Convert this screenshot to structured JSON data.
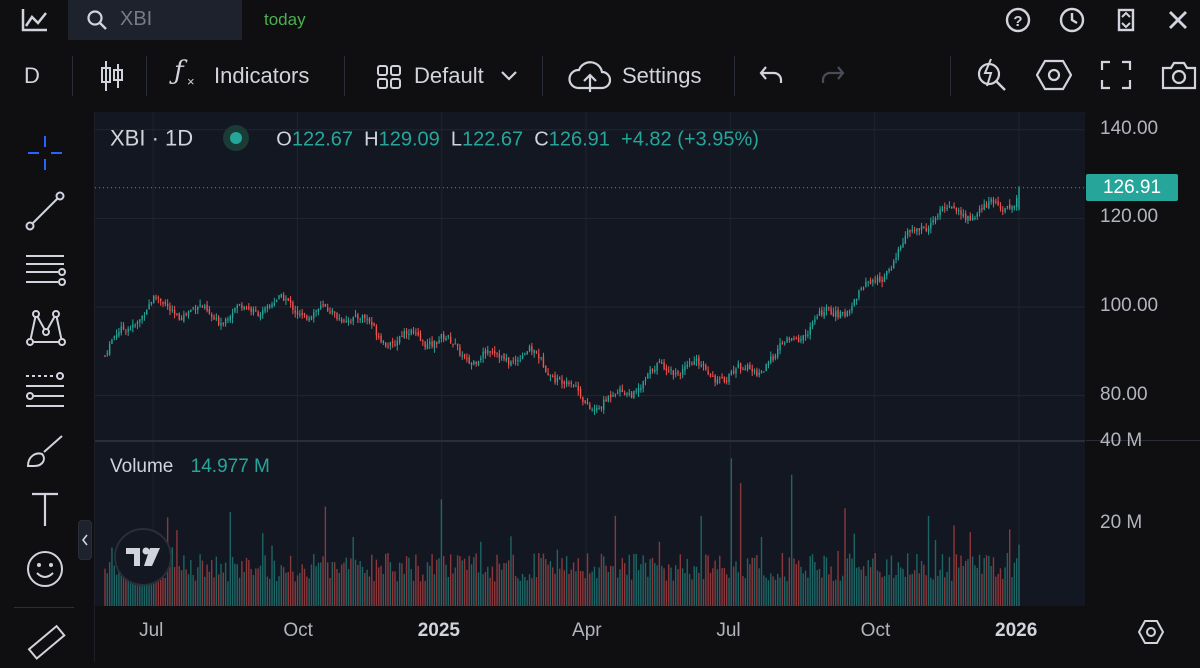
{
  "header": {
    "search_placeholder": "XBI",
    "today_label": "today"
  },
  "toolbar": {
    "interval": "D",
    "indicators_label": "Indicators",
    "layout_label": "Default",
    "settings_label": "Settings"
  },
  "legend": {
    "symbol": "XBI · 1D",
    "o_key": "O",
    "o_val": "122.67",
    "h_key": "H",
    "h_val": "129.09",
    "l_key": "L",
    "l_val": "122.67",
    "c_key": "C",
    "c_val": "126.91",
    "change": "+4.82 (+3.95%)"
  },
  "volume": {
    "label": "Volume",
    "value": "14.977 M"
  },
  "last_price_badge": "126.91",
  "colors": {
    "up": "#26a69a",
    "down": "#ef5350",
    "accent": "#2962ff",
    "today": "#4caf50"
  },
  "chart_data": {
    "type": "candlestick",
    "symbol": "XBI",
    "interval": "1D",
    "price_axis_ticks": [
      "140.00",
      "120.00",
      "100.00",
      "80.00"
    ],
    "price_ticks_values": [
      140,
      120,
      100,
      80
    ],
    "price_range": [
      70,
      144
    ],
    "volume_axis_ticks": [
      "40 M",
      "20 M"
    ],
    "volume_ticks_values": [
      40,
      20
    ],
    "volume_range": [
      0,
      40
    ],
    "time_labels": [
      "Jul",
      "Oct",
      "2025",
      "Apr",
      "Jul",
      "Oct",
      "2026"
    ],
    "time_label_bold": [
      false,
      false,
      true,
      false,
      false,
      false,
      true
    ],
    "last_close": 126.91,
    "close_series": [
      {
        "month": "2024-06",
        "close": 89
      },
      {
        "month": "2024-07",
        "close": 99
      },
      {
        "month": "2024-08",
        "close": 101
      },
      {
        "month": "2024-09",
        "close": 98
      },
      {
        "month": "2024-10",
        "close": 99
      },
      {
        "month": "2024-11",
        "close": 101
      },
      {
        "month": "2024-12",
        "close": 90
      },
      {
        "month": "2025-01",
        "close": 93
      },
      {
        "month": "2025-02",
        "close": 90
      },
      {
        "month": "2025-03",
        "close": 86
      },
      {
        "month": "2025-04",
        "close": 80
      },
      {
        "month": "2025-05",
        "close": 82
      },
      {
        "month": "2025-06",
        "close": 85
      },
      {
        "month": "2025-07",
        "close": 87
      },
      {
        "month": "2025-08",
        "close": 88
      },
      {
        "month": "2025-09",
        "close": 97
      },
      {
        "month": "2025-10",
        "close": 108
      },
      {
        "month": "2025-11",
        "close": 117
      },
      {
        "month": "2025-12",
        "close": 122
      },
      {
        "month": "2026-01",
        "close": 126.91
      }
    ]
  }
}
